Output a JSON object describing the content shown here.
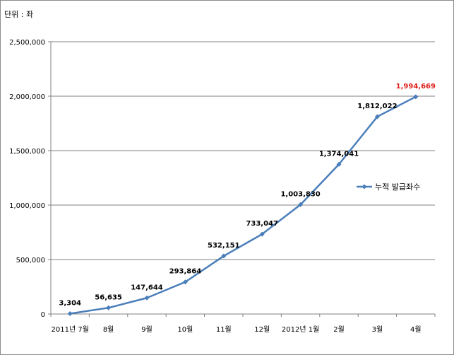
{
  "chart_data": {
    "type": "line",
    "unit_label": "단위 : 좌",
    "categories": [
      "2011년 7월",
      "8월",
      "9월",
      "10월",
      "11월",
      "12월",
      "2012년 1월",
      "2월",
      "3월",
      "4월"
    ],
    "series": [
      {
        "name": "누적 발급좌수",
        "values": [
          3304,
          56635,
          147644,
          293864,
          532151,
          733047,
          1003830,
          1374041,
          1812022,
          1994669
        ],
        "labels": [
          "3,304",
          "56,635",
          "147,644",
          "293,864",
          "532,151",
          "733,047",
          "1,003,830",
          "1,374,041",
          "1,812,022",
          "1,994,669"
        ],
        "color": "#4a7ebb"
      }
    ],
    "highlight_index": 9,
    "highlight_color": "#e0201b",
    "ylim": [
      0,
      2500000
    ],
    "yticks": [
      0,
      500000,
      1000000,
      1500000,
      2000000,
      2500000
    ],
    "ytick_labels": [
      "0",
      "500,000",
      "1,000,000",
      "1,500,000",
      "2,000,000",
      "2,500,000"
    ],
    "grid": true,
    "legend": "right"
  }
}
